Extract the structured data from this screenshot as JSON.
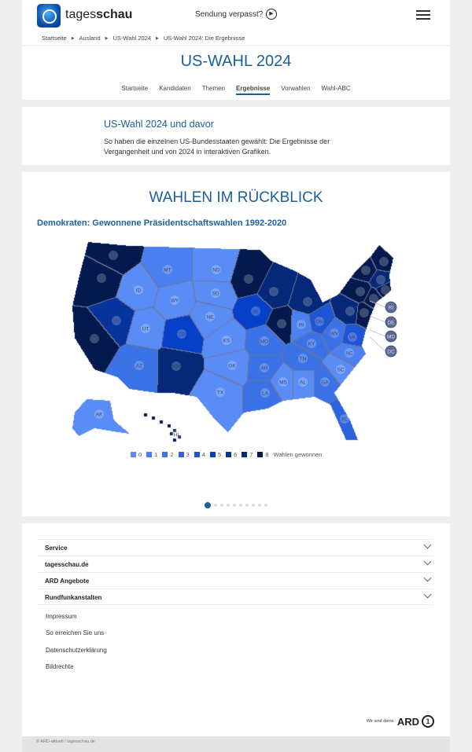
{
  "header": {
    "brand_light": "tages",
    "brand_bold": "schau",
    "missed": "Sendung verpasst?"
  },
  "breadcrumb": [
    "Startseite",
    "Ausland",
    "US-Wahl 2024",
    "US-Wahl 2024: Die Ergebnisse"
  ],
  "page_title": "US-WAHL 2024",
  "nav": [
    {
      "label": "Startseite"
    },
    {
      "label": "Kandidaten"
    },
    {
      "label": "Themen"
    },
    {
      "label": "Ergebnisse",
      "active": true
    },
    {
      "label": "Vorwahlen"
    },
    {
      "label": "Wahl-ABC"
    }
  ],
  "intro": {
    "heading": "US-Wahl 2024 und davor",
    "text": "So haben die einzelnen US-Bundesstaaten gewählt: Die Ergebnisse der Vergangenheit und von 2024 in interaktiven Grafiken."
  },
  "section": {
    "heading": "WAHLEN IM RÜCKBLICK"
  },
  "chart_data": {
    "type": "choropleth",
    "title": "Demokraten: Gewonnene Präsidentschaftswahlen 1992-2020",
    "legend_title": "Wahlen gewonnen",
    "legend_values": [
      0,
      1,
      2,
      3,
      4,
      5,
      6,
      7,
      8
    ],
    "colors": [
      "#5a8cf6",
      "#4a80ef",
      "#3b72e6",
      "#2c63dd",
      "#1d55d4",
      "#0640c8",
      "#07349c",
      "#052878",
      "#041a4e"
    ],
    "states": {
      "WA": 8,
      "OR": 8,
      "CA": 8,
      "NV": 6,
      "ID": 0,
      "MT": 1,
      "WY": 0,
      "UT": 0,
      "CO": 5,
      "AZ": 2,
      "NM": 7,
      "ND": 0,
      "SD": 0,
      "NE": 0,
      "KS": 0,
      "OK": 0,
      "TX": 0,
      "MN": 8,
      "IA": 5,
      "MO": 2,
      "AR": 2,
      "LA": 2,
      "WI": 7,
      "IL": 8,
      "MI": 7,
      "IN": 1,
      "OH": 4,
      "KY": 2,
      "TN": 2,
      "MS": 0,
      "AL": 0,
      "GA": 2,
      "FL": 3,
      "SC": 0,
      "NC": 1,
      "VA": 4,
      "WV": 2,
      "PA": 7,
      "NY": 8,
      "VT": 8,
      "NH": 7,
      "ME": 8,
      "MA": 8,
      "CT": 8,
      "NJ": 8,
      "RI": 8,
      "DE": 8,
      "MD": 8,
      "DC": 8,
      "AK": 0,
      "HI": 8
    }
  },
  "carousel": {
    "slides": 10,
    "active": 1
  },
  "footer": {
    "sections": [
      "Service",
      "tagesschau.de",
      "ARD Angebote",
      "Rundfunkanstalten"
    ],
    "links": [
      "Impressum",
      "So erreichen Sie uns",
      "Datenschutzerklärung",
      "Bildrechte"
    ],
    "ard_slogan": "Wir sind deins.",
    "ard_logo": "ARD",
    "copyright": "© ARD-aktuell / tagesschau.de"
  }
}
